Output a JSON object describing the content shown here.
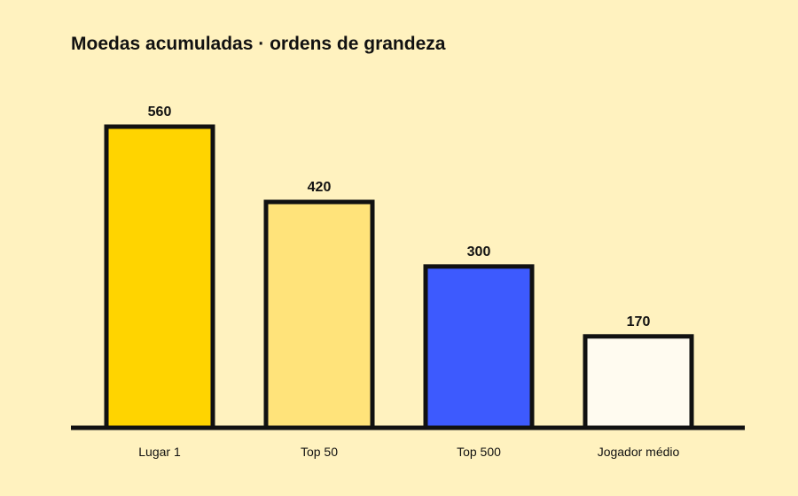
{
  "chart_data": {
    "type": "bar",
    "title": "Moedas acumuladas · ordens de grandeza",
    "categories": [
      "Lugar 1",
      "Top 50",
      "Top 500",
      "Jogador médio"
    ],
    "values": [
      560,
      420,
      300,
      170
    ],
    "data_labels": [
      "560",
      "420",
      "300",
      "170"
    ],
    "colors": [
      "#FFD400",
      "#FFE37A",
      "#3D5AFE",
      "#FFFBF0"
    ],
    "outline_color": "#111111",
    "axis_color": "#111111",
    "background": "#FFF2BF",
    "ylim": [
      0,
      560
    ],
    "grid": false,
    "legend": "none"
  }
}
